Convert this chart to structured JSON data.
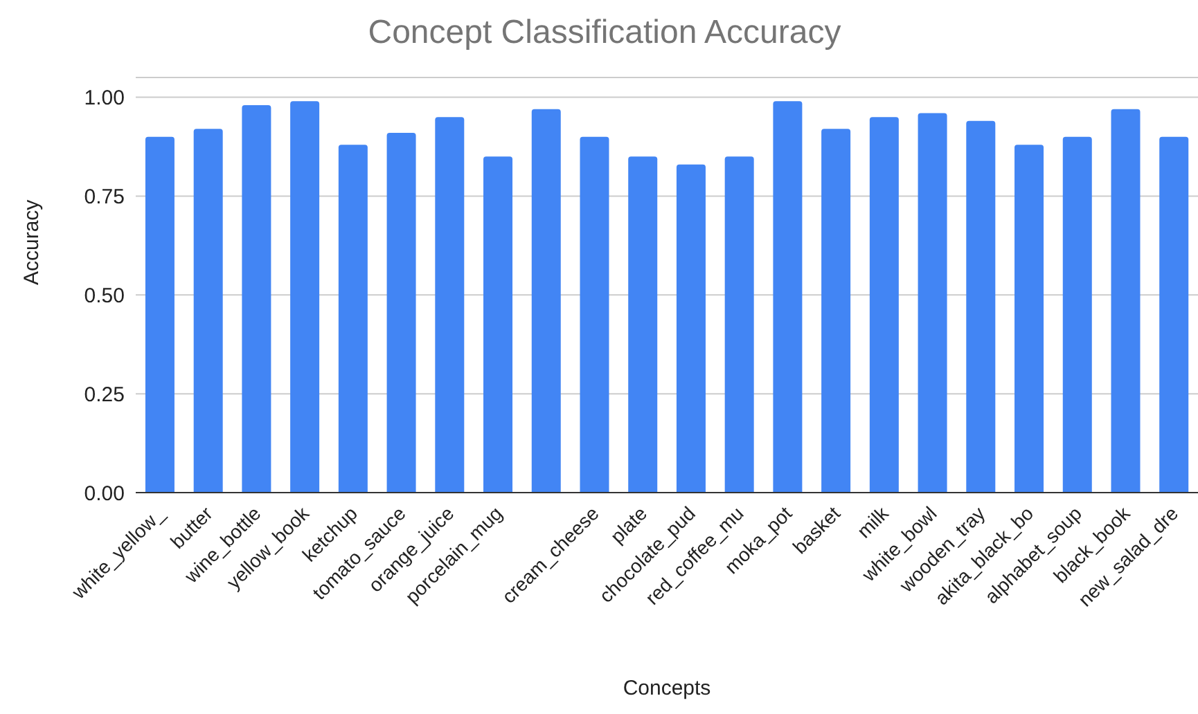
{
  "chart_data": {
    "type": "bar",
    "title": "Concept Classification Accuracy",
    "xlabel": "Concepts",
    "ylabel": "Accuracy",
    "categories": [
      "white_yellow_",
      "butter",
      "wine_bottle",
      "yellow_book",
      "ketchup",
      "tomato_sauce",
      "orange_juice",
      "porcelain_mug",
      null,
      "cream_cheese",
      "plate",
      "chocolate_pud",
      "red_coffee_mu",
      "moka_pot",
      "basket",
      "milk",
      "white_bowl",
      "wooden_tray",
      "akita_black_bo",
      "alphabet_soup",
      "black_book",
      "new_salad_dre"
    ],
    "values": [
      0.9,
      0.92,
      0.98,
      0.99,
      0.88,
      0.91,
      0.95,
      0.85,
      0.97,
      0.9,
      0.85,
      0.83,
      0.85,
      0.99,
      0.92,
      0.95,
      0.96,
      0.94,
      0.88,
      0.9,
      0.97,
      0.9
    ],
    "color": "#4285f4",
    "ylim": [
      0,
      1.05
    ],
    "yticks": [
      {
        "value": 0,
        "label": "0.00"
      },
      {
        "value": 0.25,
        "label": "0.25"
      },
      {
        "value": 0.5,
        "label": "0.50"
      },
      {
        "value": 0.75,
        "label": "0.75"
      },
      {
        "value": 1,
        "label": "1.00"
      }
    ],
    "grid": "y",
    "legend": false
  }
}
